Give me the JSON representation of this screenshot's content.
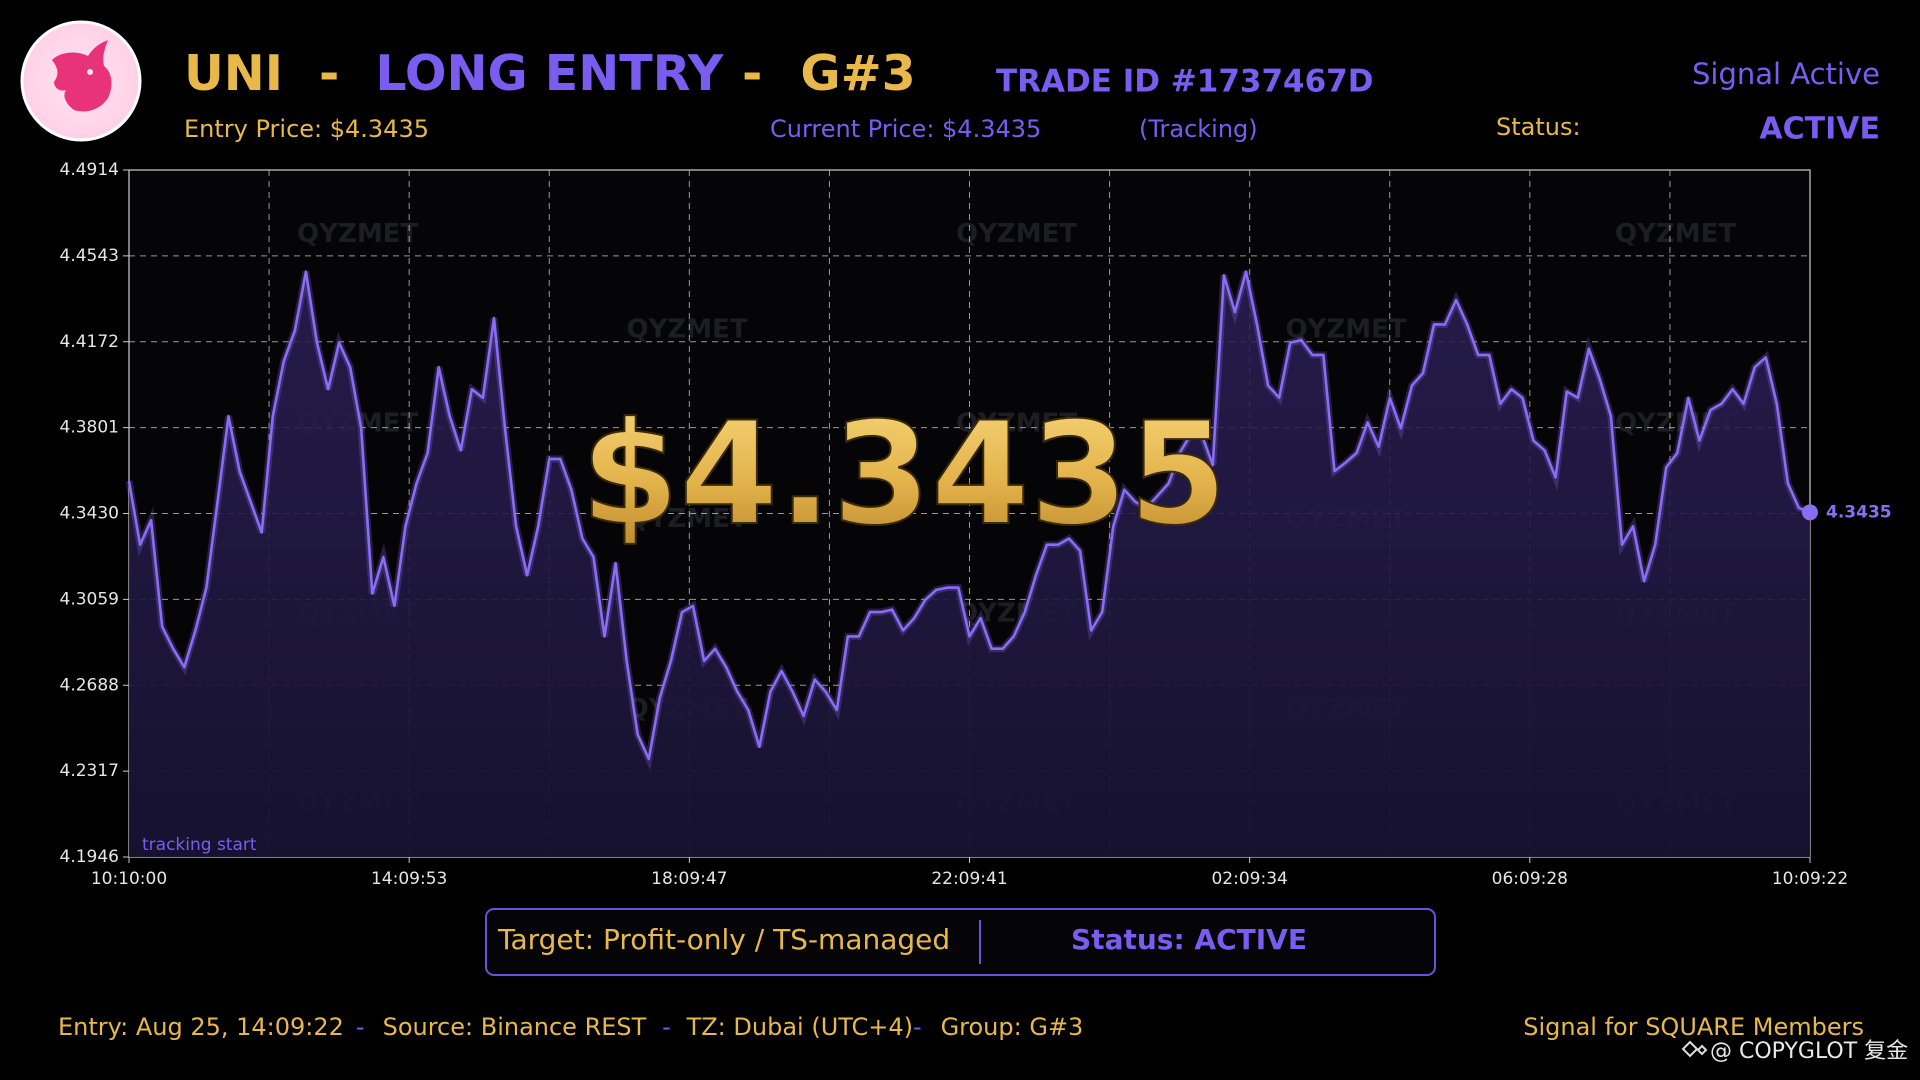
{
  "header": {
    "symbol": "UNI",
    "separator": "-",
    "side": "LONG ENTRY",
    "group": "G#3",
    "trade_id": "TRADE ID #1737467D",
    "signal_state": "Signal Active",
    "entry_price": "Entry Price: $4.3435",
    "current_price": "Current Price: $4.3435",
    "tracking": "(Tracking)",
    "status_label": "Status:",
    "status_value": "ACTIVE",
    "big_price": "$4.3435",
    "watermark": "QYZMET"
  },
  "target_box": {
    "target": "Target: Profit-only / TS-managed",
    "status": "Status: ACTIVE"
  },
  "footer": {
    "entry": "Entry: Aug 25, 14:09:22",
    "source": "Source: Binance REST",
    "tz": "TZ: Dubai (UTC+4)",
    "group": "Group: G#3",
    "audience": "Signal for SQUARE Members",
    "copyright": "@ COPYGLOT 复金"
  },
  "chart_data": {
    "type": "line",
    "annotation": "tracking start",
    "color": "#8b6cf5",
    "grid": true,
    "xticks": [
      "10:10:00",
      "14:09:53",
      "18:09:47",
      "22:09:41",
      "02:09:34",
      "06:09:28",
      "10:09:22"
    ],
    "ylim": [
      4.1946,
      4.4914
    ],
    "yticks": [
      4.1946,
      4.2317,
      4.2688,
      4.3059,
      {
        "value": 4.343,
        "label": "4.3430"
      },
      4.3801,
      4.4172,
      4.4543,
      4.4914
    ],
    "values": [
      4.357,
      4.3295,
      4.3401,
      4.2941,
      4.2846,
      4.2766,
      4.2925,
      4.311,
      4.348,
      4.3851,
      4.3613,
      4.348,
      4.3348,
      4.3851,
      4.4089,
      4.4221,
      4.4475,
      4.4168,
      4.3967,
      4.4168,
      4.4062,
      4.3798,
      4.3084,
      4.3242,
      4.3031,
      4.3375,
      4.356,
      4.3692,
      4.4062,
      4.3851,
      4.3703,
      4.3967,
      4.393,
      4.4274,
      4.3798,
      4.3375,
      4.3163,
      4.3375,
      4.3666,
      4.3666,
      4.3533,
      4.3322,
      4.3242,
      4.2899,
      4.3216,
      4.2793,
      4.2475,
      4.237,
      4.2634,
      4.2793,
      4.3004,
      4.3031,
      4.2793,
      4.2846,
      4.2766,
      4.266,
      4.2581,
      4.2422,
      4.266,
      4.275,
      4.266,
      4.2555,
      4.2713,
      4.266,
      4.2581,
      4.2899,
      4.2899,
      4.3004,
      4.3004,
      4.3015,
      4.2925,
      4.2978,
      4.3057,
      4.31,
      4.311,
      4.311,
      4.2899,
      4.2978,
      4.2846,
      4.2846,
      4.2899,
      4.3004,
      4.3163,
      4.3295,
      4.3295,
      4.3322,
      4.3269,
      4.2925,
      4.3004,
      4.3375,
      4.3533,
      4.348,
      4.3454,
      4.3507,
      4.356,
      4.3692,
      4.3771,
      4.3771,
      4.3639,
      4.4459,
      4.43,
      4.4475,
      4.4247,
      4.3983,
      4.393,
      4.4168,
      4.4179,
      4.4115,
      4.4115,
      4.3613,
      4.365,
      4.3692,
      4.3824,
      4.3718,
      4.393,
      4.3798,
      4.3983,
      4.4036,
      4.4247,
      4.4247,
      4.4353,
      4.4247,
      4.4115,
      4.4115,
      4.3904,
      4.3967,
      4.393,
      4.3745,
      4.3703,
      4.3586,
      4.3957,
      4.393,
      4.4142,
      4.4009,
      4.3851,
      4.3295,
      4.3375,
      4.3137,
      4.3295,
      4.3629,
      4.3692,
      4.393,
      4.3745,
      4.3877,
      4.3904,
      4.3967,
      4.3904,
      4.4062,
      4.4105,
      4.3904,
      4.356,
      4.3454,
      4.3435
    ]
  }
}
